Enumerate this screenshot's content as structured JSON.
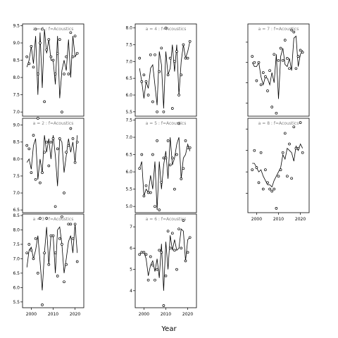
{
  "chart_data": {
    "type": "line",
    "xlabel": "Year",
    "grid": false,
    "panels": [
      {
        "title": "a = 1 : f=Acoustics",
        "xlim": [
          1996,
          2024
        ],
        "ylim": [
          6.88,
          9.55
        ],
        "yticks": [
          7.0,
          7.5,
          8.0,
          8.5,
          9.0,
          9.5
        ],
        "xticks": [],
        "show_y_labels": true,
        "x": [
          1998,
          1999,
          2000,
          2001,
          2002,
          2003,
          2004,
          2005,
          2006,
          2007,
          2008,
          2009,
          2010,
          2011,
          2012,
          2013,
          2014,
          2015,
          2016,
          2017,
          2018,
          2019,
          2020,
          2021
        ],
        "line": [
          8.3,
          8.5,
          8.9,
          8.4,
          9.2,
          7.5,
          9.3,
          7.7,
          9.4,
          8.7,
          9.1,
          8.5,
          8.5,
          7.8,
          9.2,
          7.4,
          8.2,
          8.5,
          8.2,
          9.1,
          8.0,
          9.2,
          8.6,
          8.7
        ],
        "points": [
          8.6,
          8.4,
          8.9,
          8.3,
          9.4,
          8.1,
          9.0,
          9.4,
          7.3,
          8.8,
          9.1,
          8.6,
          8.5,
          8.1,
          8.7,
          9.1,
          7.0,
          8.1,
          8.6,
          8.1,
          9.3,
          8.6,
          9.2,
          8.7
        ]
      },
      {
        "title": "a = 2 : f=Acoustics",
        "xlim": [
          1996,
          2024
        ],
        "ylim": [
          6.42,
          9.2
        ],
        "yticks": [
          6.5,
          7.0,
          7.5,
          8.0,
          8.5,
          9.0
        ],
        "xticks": [],
        "show_y_labels": true,
        "x": [
          1998,
          1999,
          2000,
          2001,
          2002,
          2003,
          2004,
          2005,
          2006,
          2007,
          2008,
          2009,
          2010,
          2011,
          2012,
          2013,
          2014,
          2015,
          2016,
          2017,
          2018,
          2019,
          2020,
          2021
        ],
        "line": [
          7.9,
          8.0,
          7.7,
          8.4,
          8.6,
          7.4,
          8.0,
          7.6,
          8.7,
          8.2,
          8.6,
          8.0,
          8.7,
          8.1,
          7.2,
          8.6,
          8.5,
          7.6,
          8.1,
          8.6,
          8.2,
          8.5,
          7.9,
          8.7
        ],
        "points": [
          8.4,
          8.3,
          7.6,
          8.7,
          7.4,
          9.2,
          7.3,
          7.6,
          8.2,
          8.5,
          7.8,
          8.5,
          8.6,
          6.6,
          8.3,
          8.6,
          6.3,
          7.0,
          8.2,
          8.4,
          8.9,
          8.6,
          7.9,
          8.5
        ]
      },
      {
        "title": "a = 3 : f=Acoustics",
        "xlim": [
          1996,
          2024
        ],
        "ylim": [
          5.3,
          8.55
        ],
        "yticks": [
          5.5,
          6.0,
          6.5,
          7.0,
          7.5,
          8.0,
          8.5
        ],
        "xticks": [
          2000,
          2010,
          2020
        ],
        "show_y_labels": true,
        "x": [
          1998,
          1999,
          2000,
          2001,
          2002,
          2003,
          2004,
          2005,
          2006,
          2007,
          2008,
          2009,
          2010,
          2011,
          2012,
          2013,
          2014,
          2015,
          2016,
          2017,
          2018,
          2019,
          2020,
          2021
        ],
        "line": [
          6.7,
          7.3,
          7.4,
          7.0,
          7.3,
          7.8,
          6.9,
          5.9,
          7.2,
          8.1,
          6.8,
          7.8,
          7.8,
          6.5,
          8.0,
          8.1,
          7.5,
          6.5,
          7.0,
          7.6,
          7.8,
          7.2,
          8.2,
          7.2
        ],
        "points": [
          7.2,
          7.5,
          7.3,
          7.0,
          7.7,
          6.5,
          8.4,
          5.4,
          7.2,
          8.4,
          6.8,
          7.8,
          7.8,
          7.2,
          6.4,
          7.7,
          7.5,
          6.2,
          6.8,
          8.2,
          8.2,
          7.7,
          8.2,
          6.9
        ]
      },
      {
        "title": "a = 4 : f=Acoustics",
        "xlim": [
          1996,
          2024
        ],
        "ylim": [
          5.37,
          8.12
        ],
        "yticks": [
          5.5,
          6.0,
          6.5,
          7.0,
          7.5,
          8.0
        ],
        "xticks": [],
        "show_y_labels": true,
        "x": [
          1998,
          1999,
          2000,
          2001,
          2002,
          2003,
          2004,
          2005,
          2006,
          2007,
          2008,
          2009,
          2010,
          2011,
          2012,
          2013,
          2014,
          2015,
          2016,
          2017,
          2018,
          2019,
          2020,
          2021
        ],
        "line": [
          6.8,
          6.4,
          5.9,
          6.4,
          6.2,
          6.8,
          6.9,
          6.3,
          5.7,
          7.3,
          6.9,
          5.6,
          7.3,
          6.6,
          6.8,
          7.5,
          6.7,
          7.5,
          6.0,
          7.0,
          7.5,
          7.1,
          7.3,
          7.6
        ],
        "points": [
          7.1,
          6.4,
          6.6,
          6.4,
          6.0,
          7.2,
          5.8,
          7.2,
          5.5,
          6.7,
          7.4,
          5.5,
          8.0,
          6.6,
          7.1,
          5.6,
          7.0,
          7.3,
          6.0,
          6.6,
          7.5,
          7.1,
          7.1,
          7.6
        ]
      },
      {
        "title": "a = 5 : f=Acoustics",
        "xlim": [
          1996,
          2024
        ],
        "ylim": [
          4.82,
          7.55
        ],
        "yticks": [
          5.0,
          5.5,
          6.0,
          6.5,
          7.0,
          7.5
        ],
        "xticks": [],
        "show_y_labels": true,
        "x": [
          1998,
          1999,
          2000,
          2001,
          2002,
          2003,
          2004,
          2005,
          2006,
          2007,
          2008,
          2009,
          2010,
          2011,
          2012,
          2013,
          2014,
          2015,
          2016,
          2017,
          2018,
          2019,
          2020,
          2021
        ],
        "line": [
          6.1,
          6.3,
          5.3,
          5.5,
          5.4,
          5.9,
          5.5,
          6.3,
          4.9,
          6.3,
          5.5,
          6.2,
          6.6,
          5.8,
          7.0,
          6.2,
          6.4,
          6.8,
          7.0,
          5.8,
          6.4,
          6.5,
          6.8,
          6.6
        ],
        "points": [
          6.1,
          6.5,
          5.3,
          5.6,
          5.4,
          5.4,
          6.5,
          5.0,
          6.9,
          4.9,
          5.7,
          6.4,
          6.4,
          6.9,
          6.2,
          6.4,
          5.5,
          6.5,
          7.4,
          5.8,
          6.1,
          6.9,
          6.7,
          6.7
        ]
      },
      {
        "title": "a = 6 : f=Acoustics",
        "xlim": [
          1996,
          2024
        ],
        "ylim": [
          3.2,
          7.6
        ],
        "yticks": [
          4,
          5,
          6,
          7
        ],
        "xticks": [
          2000,
          2010,
          2020
        ],
        "show_y_labels": true,
        "x": [
          1998,
          1999,
          2000,
          2001,
          2002,
          2003,
          2004,
          2005,
          2006,
          2007,
          2008,
          2009,
          2010,
          2011,
          2012,
          2013,
          2014,
          2015,
          2016,
          2017,
          2018,
          2019,
          2020,
          2021
        ],
        "line": [
          5.7,
          5.8,
          5.8,
          5.5,
          4.7,
          5.2,
          5.4,
          4.9,
          5.5,
          4.6,
          6.2,
          4.0,
          6.3,
          5.0,
          6.6,
          5.9,
          6.4,
          5.9,
          6.0,
          6.9,
          6.8,
          5.4,
          6.4,
          6.5
        ],
        "points": [
          5.7,
          5.8,
          5.8,
          5.7,
          4.5,
          5.6,
          5.2,
          4.5,
          5.0,
          5.9,
          5.8,
          3.3,
          4.7,
          6.8,
          6.0,
          6.7,
          5.9,
          5.0,
          6.9,
          6.0,
          7.3,
          5.4,
          5.8,
          6.5
        ]
      },
      {
        "title": "a = 7 : f=Acoustics",
        "xlim": [
          1996,
          2024
        ],
        "ylim": [
          2.35,
          6.9
        ],
        "yticks": [
          3,
          4,
          5,
          6
        ],
        "xticks": [],
        "show_y_labels": false,
        "x": [
          1998,
          1999,
          2000,
          2001,
          2002,
          2003,
          2004,
          2005,
          2006,
          2007,
          2008,
          2009,
          2010,
          2011,
          2012,
          2013,
          2014,
          2015,
          2016,
          2017,
          2018,
          2019,
          2020,
          2021
        ],
        "line": [
          5.0,
          4.8,
          4.8,
          5.0,
          4.3,
          3.9,
          4.3,
          4.2,
          3.9,
          4.5,
          4.0,
          5.4,
          3.2,
          5.3,
          5.7,
          4.9,
          4.8,
          5.2,
          4.6,
          6.2,
          6.3,
          4.8,
          5.4,
          5.6
        ],
        "points": [
          5.3,
          5.0,
          4.1,
          5.0,
          3.9,
          4.5,
          4.3,
          3.6,
          4.6,
          2.8,
          5.4,
          2.5,
          5.1,
          5.7,
          5.1,
          6.1,
          5.2,
          4.7,
          6.6,
          6.5,
          4.7,
          5.3,
          5.6,
          5.5
        ]
      },
      {
        "title": "a = 8 : f=Acoustics",
        "xlim": [
          1996,
          2024
        ],
        "ylim": [
          2.1,
          6.5
        ],
        "yticks": [
          3,
          4,
          5,
          6
        ],
        "xticks": [
          2000,
          2010,
          2020
        ],
        "show_y_labels": false,
        "x": [
          1998,
          1999,
          2000,
          2001,
          2002,
          2003,
          2004,
          2005,
          2006,
          2007,
          2008,
          2009,
          2010,
          2011,
          2012,
          2013,
          2014,
          2015,
          2016,
          2017,
          2018,
          2019,
          2020,
          2021
        ],
        "line": [
          4.4,
          4.4,
          4.2,
          4.0,
          4.1,
          3.8,
          3.6,
          3.4,
          3.4,
          3.3,
          3.6,
          3.8,
          4.0,
          4.2,
          4.8,
          4.6,
          5.1,
          5.0,
          4.9,
          4.5,
          5.2,
          5.0,
          5.3,
          5.1
        ],
        "points": [
          4.1,
          5.0,
          4.2,
          3.5,
          4.9,
          3.2,
          4.1,
          3.5,
          3.2,
          3.1,
          3.2,
          2.3,
          3.8,
          4.1,
          4.9,
          5.8,
          3.8,
          5.3,
          3.7,
          6.1,
          5.1,
          5.1,
          6.3,
          4.9
        ]
      }
    ]
  }
}
